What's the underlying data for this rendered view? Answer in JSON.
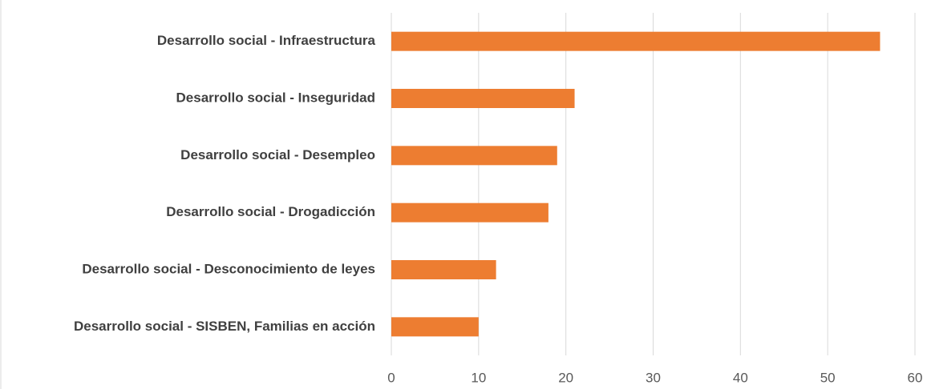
{
  "chart_data": {
    "type": "barh",
    "categories": [
      "Desarrollo social - Infraestructura",
      "Desarrollo social - Inseguridad",
      "Desarrollo social - Desempleo",
      "Desarrollo social - Drogadicción",
      "Desarrollo social - Desconocimiento de leyes",
      "Desarrollo social - SISBEN, Familias en acción"
    ],
    "values": [
      56,
      21,
      19,
      18,
      12,
      10
    ],
    "color": "#ed7d31",
    "xlim": [
      0,
      60
    ],
    "xticks": [
      0,
      10,
      20,
      30,
      40,
      50,
      60
    ],
    "grid": true
  }
}
